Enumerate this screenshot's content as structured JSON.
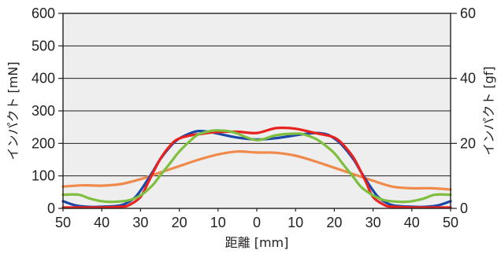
{
  "chart_data": {
    "type": "line",
    "xlabel": "距離 [mm]",
    "ylabel_left": "インパクト [mN]",
    "ylabel_right": "インパクト [gf]",
    "x_ticks": [
      "50",
      "40",
      "30",
      "20",
      "10",
      "0",
      "10",
      "20",
      "30",
      "40",
      "50"
    ],
    "x_values": [
      -50,
      -40,
      -30,
      -20,
      -10,
      0,
      10,
      20,
      30,
      40,
      50
    ],
    "y_left_ticks": [
      "0",
      "100",
      "200",
      "300",
      "400",
      "500",
      "600"
    ],
    "y_right_ticks": [
      "0",
      "20",
      "40",
      "60"
    ],
    "xlim": [
      -50,
      50
    ],
    "ylim_left": [
      0,
      600
    ],
    "ylim_right": [
      0,
      60
    ],
    "grid": "horizontal",
    "legend": "none",
    "plot_background": "#eeeeee",
    "series": [
      {
        "color": "#f08a4b",
        "x": [
          -50,
          -45,
          -40,
          -35,
          -30,
          -25,
          -20,
          -15,
          -10,
          -5,
          0,
          5,
          10,
          15,
          20,
          25,
          30,
          35,
          40,
          45,
          50
        ],
        "values": [
          67,
          71,
          70,
          75,
          90,
          110,
          130,
          150,
          166,
          175,
          172,
          171,
          162,
          145,
          125,
          105,
          85,
          67,
          62,
          62,
          58
        ]
      },
      {
        "color": "#1b47a8",
        "x": [
          -50,
          -47,
          -44,
          -40,
          -35,
          -32,
          -30,
          -27,
          -25,
          -22,
          -20,
          -17,
          -15,
          -12,
          -10,
          -5,
          0,
          5,
          10,
          15,
          18,
          20,
          22,
          25,
          27,
          30,
          32,
          35,
          40,
          44,
          47,
          50
        ],
        "values": [
          22,
          10,
          5,
          5,
          10,
          28,
          55,
          110,
          150,
          195,
          215,
          232,
          238,
          235,
          230,
          218,
          212,
          216,
          225,
          232,
          228,
          215,
          195,
          150,
          110,
          55,
          28,
          10,
          5,
          5,
          10,
          22
        ]
      },
      {
        "color": "#e8231f",
        "x": [
          -50,
          -45,
          -40,
          -35,
          -33,
          -30,
          -28,
          -25,
          -22,
          -20,
          -17,
          -15,
          -12,
          -10,
          -5,
          0,
          5,
          10,
          15,
          18,
          20,
          22,
          25,
          28,
          30,
          33,
          35,
          40,
          45,
          50
        ],
        "values": [
          3,
          3,
          3,
          5,
          10,
          35,
          80,
          150,
          198,
          215,
          225,
          228,
          233,
          235,
          236,
          232,
          247,
          245,
          232,
          225,
          218,
          200,
          155,
          85,
          35,
          10,
          5,
          3,
          3,
          3
        ]
      },
      {
        "color": "#7fbf3f",
        "x": [
          -50,
          -46,
          -43,
          -40,
          -37,
          -33,
          -30,
          -27,
          -25,
          -22,
          -20,
          -17,
          -15,
          -12,
          -10,
          -7,
          -5,
          0,
          5,
          10,
          12,
          15,
          17,
          20,
          22,
          25,
          27,
          30,
          33,
          37,
          40,
          43,
          46,
          50
        ],
        "values": [
          42,
          42,
          30,
          22,
          20,
          25,
          40,
          70,
          100,
          145,
          175,
          210,
          228,
          238,
          240,
          237,
          230,
          210,
          225,
          230,
          228,
          215,
          200,
          170,
          140,
          95,
          65,
          40,
          25,
          20,
          22,
          30,
          42,
          42
        ]
      }
    ]
  }
}
